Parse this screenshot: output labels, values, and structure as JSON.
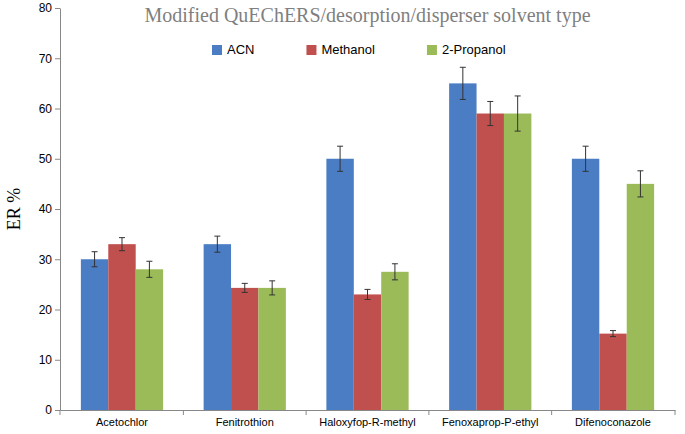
{
  "chart_data": {
    "type": "bar",
    "title": "Modified QuEChERS/desorption/disperser solvent type",
    "y_label": "ER %",
    "categories": [
      "Acetochlor",
      "Fenitrothion",
      "Haloxyfop-R-methyl",
      "Fenoxaprop-P-ethyl",
      "Difenoconazole"
    ],
    "series": [
      {
        "name": "ACN",
        "color": "#4a7dc4",
        "values": [
          30,
          33,
          50,
          65,
          50
        ],
        "errors": [
          1.5,
          1.6,
          2.5,
          3.2,
          2.5
        ]
      },
      {
        "name": "Methanol",
        "color": "#c0504d",
        "values": [
          33,
          24.3,
          23,
          59,
          15.2
        ],
        "errors": [
          1.3,
          0.9,
          1.0,
          2.4,
          0.6
        ]
      },
      {
        "name": "2-Propanol",
        "color": "#9bbb59",
        "values": [
          28,
          24.3,
          27.5,
          59,
          45
        ],
        "errors": [
          1.6,
          1.4,
          1.6,
          3.5,
          2.6
        ]
      }
    ],
    "ylim": [
      0,
      80
    ],
    "yticks": [
      0,
      10,
      20,
      30,
      40,
      50,
      60,
      70,
      80
    ],
    "grid": false,
    "legend": "top"
  }
}
